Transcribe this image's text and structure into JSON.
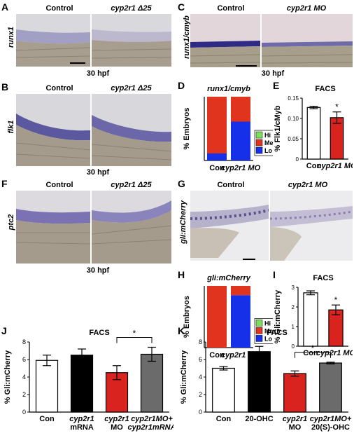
{
  "panels": {
    "A": {
      "letter": "A",
      "gene": "runx1",
      "left_title": "Control",
      "right_title": "cyp2r1 Δ25",
      "stage": "30 hpf"
    },
    "B": {
      "letter": "B",
      "gene": "flk1",
      "left_title": "Control",
      "right_title": "cyp2r1 Δ25",
      "stage": "30 hpf"
    },
    "C": {
      "letter": "C",
      "gene": "runx1/cmyb",
      "left_title": "Control",
      "right_title": "cyp2r1 MO",
      "stage": "30 hpf"
    },
    "F": {
      "letter": "F",
      "gene": "ptc2",
      "left_title": "Control",
      "right_title": "cyp2r1 Δ25",
      "stage": "30 hpf"
    },
    "G": {
      "letter": "G",
      "gene": "gli:mCherry",
      "left_title": "Control",
      "right_title": "cyp2r1 MO"
    }
  },
  "chart_data": [
    {
      "id": "D",
      "letter": "D",
      "type": "bar",
      "stacked": true,
      "title": "runx1/cmyb",
      "ylabel": "% Embryos",
      "categories": [
        "Con",
        "cyp2r1 MO"
      ],
      "series": [
        {
          "name": "Hi",
          "color": "#7CE05A",
          "values": [
            0.0,
            0.0
          ]
        },
        {
          "name": "Med",
          "color": "#E0341F",
          "values": [
            0.89,
            0.39
          ]
        },
        {
          "name": "Lo",
          "color": "#1530E8",
          "values": [
            0.11,
            0.61
          ]
        }
      ],
      "legend_labels": [
        "Hi",
        "Med",
        "Lo"
      ],
      "legend_position": "right"
    },
    {
      "id": "E",
      "letter": "E",
      "type": "bar",
      "title": "FACS",
      "ylabel": "% Flk1/cMyb",
      "categories": [
        "Con",
        "cyp2r1 MO"
      ],
      "values": [
        0.127,
        0.102
      ],
      "errors": [
        0.003,
        0.014
      ],
      "colors": [
        "#ffffff",
        "#D8231F"
      ],
      "ylim": [
        0,
        0.15
      ],
      "yticks": [
        "0",
        "0.05",
        "0.10",
        "0.15"
      ],
      "significance": "*"
    },
    {
      "id": "H",
      "letter": "H",
      "type": "bar",
      "stacked": true,
      "title": "gli:mCherry",
      "ylabel": "% Embryos",
      "categories": [
        "Con",
        "cyp2r1 MO"
      ],
      "series": [
        {
          "name": "Hi",
          "color": "#7CE05A",
          "values": [
            0.0,
            0.0
          ]
        },
        {
          "name": "Med",
          "color": "#E0341F",
          "values": [
            1.0,
            0.15
          ]
        },
        {
          "name": "Lo",
          "color": "#1530E8",
          "values": [
            0.0,
            0.85
          ]
        }
      ],
      "legend_labels": [
        "Hi",
        "Med",
        "Lo"
      ],
      "legend_position": "right"
    },
    {
      "id": "I",
      "letter": "I",
      "type": "bar",
      "title": "FACS",
      "ylabel": "% Gli:mCherry",
      "categories": [
        "Con",
        "cyp2r1 MO"
      ],
      "values": [
        2.72,
        1.85
      ],
      "errors": [
        0.1,
        0.25
      ],
      "colors": [
        "#ffffff",
        "#D8231F"
      ],
      "ylim": [
        0,
        3
      ],
      "yticks": [
        "0",
        "1",
        "2",
        "3"
      ],
      "significance": "*"
    },
    {
      "id": "J",
      "letter": "J",
      "type": "bar",
      "title": "FACS",
      "ylabel": "% Gli:mCherry",
      "categories": [
        "Con",
        "cyp2r1 mRNA",
        "cyp2r1 MO",
        "cyp2r1MO+ cyp2r1mRNA"
      ],
      "category_lines": [
        [
          "Con"
        ],
        [
          "cyp2r1",
          "mRNA"
        ],
        [
          "cyp2r1",
          "MO"
        ],
        [
          "cyp2r1MO+",
          "cyp2r1mRNA"
        ]
      ],
      "values": [
        5.9,
        6.5,
        4.5,
        6.6
      ],
      "errors": [
        0.6,
        0.7,
        0.8,
        0.8
      ],
      "colors": [
        "#ffffff",
        "#000000",
        "#D8231F",
        "#6b6b6b"
      ],
      "ylim": [
        0,
        8
      ],
      "yticks": [
        "0",
        "2",
        "4",
        "6",
        "8"
      ],
      "significance": "*",
      "sig_between": [
        2,
        3
      ]
    },
    {
      "id": "K",
      "letter": "K",
      "type": "bar",
      "title": "FACS",
      "ylabel": "% Gli:mCherry",
      "categories": [
        "Con",
        "20-OHC",
        "cyp2r1 MO",
        "cyp2r1MO+ 20(S)-OHC"
      ],
      "category_lines": [
        [
          "Con"
        ],
        [
          "20-OHC"
        ],
        [
          "cyp2r1",
          "MO"
        ],
        [
          "cyp2r1MO+",
          "20(S)-OHC"
        ]
      ],
      "values": [
        5.0,
        6.9,
        4.4,
        5.6
      ],
      "errors": [
        0.2,
        0.6,
        0.3,
        0.1
      ],
      "colors": [
        "#ffffff",
        "#000000",
        "#D8231F",
        "#6b6b6b"
      ],
      "ylim": [
        0,
        8
      ],
      "yticks": [
        "0",
        "2",
        "4",
        "6",
        "8"
      ],
      "significance": "*",
      "sig_between": [
        2,
        3
      ]
    }
  ]
}
